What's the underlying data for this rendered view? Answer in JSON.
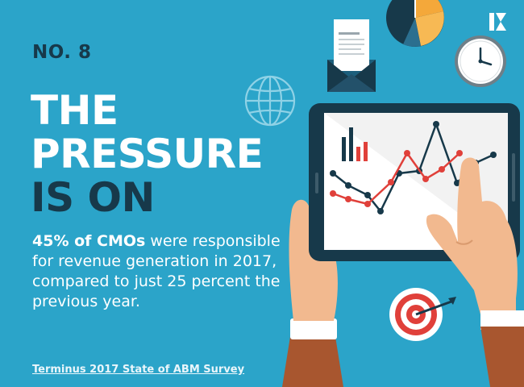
{
  "eyebrow": "NO. 8",
  "headline": {
    "line1": "THE",
    "line2": "PRESSURE",
    "line3": "IS ON"
  },
  "body": {
    "highlight": "45% of CMOs",
    "rest": " were responsible for revenue generation in 2017, compared to just 25 percent the previous year."
  },
  "source": "Terminus 2017 State of ABM Survey",
  "colors": {
    "background": "#2ba4c9",
    "dark": "#17394a",
    "white": "#ffffff",
    "red": "#e0403a",
    "orange": "#f4a83a",
    "skin": "#f2b98f"
  },
  "icons": [
    "brand-logo-icon",
    "pie-chart-icon",
    "clock-icon",
    "envelope-icon",
    "globe-icon",
    "target-icon",
    "tablet-icon"
  ]
}
